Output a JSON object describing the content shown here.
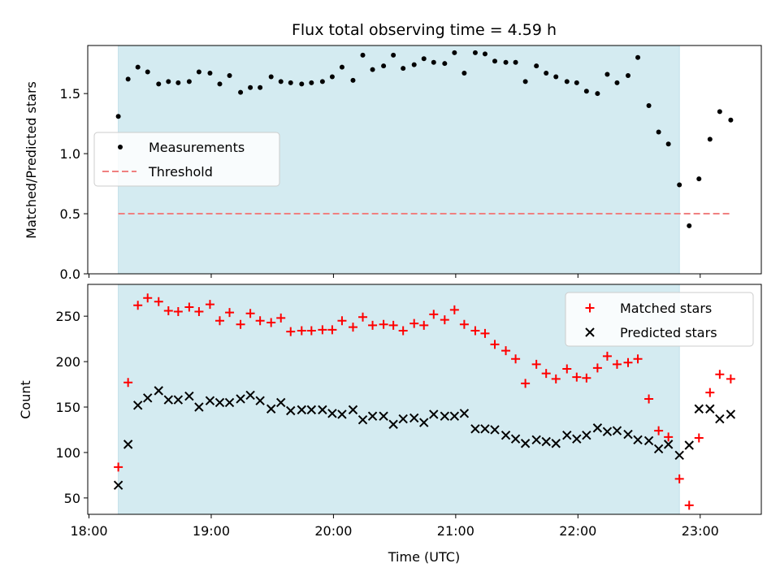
{
  "figure": {
    "title": "Flux total observing time = 4.59 h",
    "xlabel": "Time (UTC)",
    "x_tick_labels": [
      "18:00",
      "19:00",
      "20:00",
      "21:00",
      "22:00",
      "23:00"
    ],
    "shade_color": "#d4ebf1"
  },
  "chart_data": [
    {
      "type": "scatter",
      "title": "Flux total observing time = 4.59 h",
      "xlabel": "",
      "ylabel": "Matched/Predicted stars",
      "x_unit": "hours UTC",
      "xlim": [
        17.99,
        23.5
      ],
      "ylim": [
        0.0,
        1.9
      ],
      "y_ticks": [
        0.0,
        0.5,
        1.0,
        1.5
      ],
      "y_tick_labels": [
        "0.0",
        "0.5",
        "1.0",
        "1.5"
      ],
      "shaded_x_range": [
        18.24,
        22.83
      ],
      "legend": {
        "position": "center-left",
        "entries": [
          "Measurements",
          "Threshold"
        ]
      },
      "threshold": {
        "name": "Threshold",
        "y": 0.5,
        "x": [
          18.24,
          23.25
        ],
        "color": "#f08080",
        "style": "dashed"
      },
      "series": [
        {
          "name": "Measurements",
          "marker": "dot",
          "color": "#000000",
          "x": [
            18.24,
            18.32,
            18.4,
            18.48,
            18.57,
            18.65,
            18.73,
            18.82,
            18.9,
            18.99,
            19.07,
            19.15,
            19.24,
            19.32,
            19.4,
            19.49,
            19.57,
            19.65,
            19.74,
            19.82,
            19.91,
            19.99,
            20.07,
            20.16,
            20.24,
            20.32,
            20.41,
            20.49,
            20.57,
            20.66,
            20.74,
            20.82,
            20.91,
            20.99,
            21.07,
            21.16,
            21.24,
            21.32,
            21.41,
            21.49,
            21.57,
            21.66,
            21.74,
            21.82,
            21.91,
            21.99,
            22.07,
            22.16,
            22.24,
            22.32,
            22.41,
            22.49,
            22.58,
            22.66,
            22.74,
            22.83,
            22.91,
            22.99,
            23.08,
            23.16,
            23.25
          ],
          "y": [
            1.31,
            1.62,
            1.72,
            1.68,
            1.58,
            1.6,
            1.59,
            1.6,
            1.68,
            1.67,
            1.58,
            1.65,
            1.51,
            1.55,
            1.55,
            1.64,
            1.6,
            1.59,
            1.58,
            1.59,
            1.6,
            1.64,
            1.72,
            1.61,
            1.82,
            1.7,
            1.73,
            1.82,
            1.71,
            1.74,
            1.79,
            1.76,
            1.75,
            1.84,
            1.67,
            1.84,
            1.83,
            1.77,
            1.76,
            1.76,
            1.6,
            1.73,
            1.67,
            1.64,
            1.6,
            1.59,
            1.52,
            1.5,
            1.66,
            1.59,
            1.65,
            1.8,
            1.4,
            1.18,
            1.08,
            0.74,
            0.4,
            0.79,
            1.12,
            1.35,
            1.28
          ]
        }
      ]
    },
    {
      "type": "scatter",
      "title": "",
      "xlabel": "Time (UTC)",
      "ylabel": "Count",
      "x_unit": "hours UTC",
      "xlim": [
        17.99,
        23.5
      ],
      "ylim": [
        32,
        285
      ],
      "y_ticks": [
        50,
        100,
        150,
        200,
        250
      ],
      "y_tick_labels": [
        "50",
        "100",
        "150",
        "200",
        "250"
      ],
      "x_tick_labels": [
        "18:00",
        "19:00",
        "20:00",
        "21:00",
        "22:00",
        "23:00"
      ],
      "shaded_x_range": [
        18.24,
        22.83
      ],
      "legend": {
        "position": "top-right",
        "entries": [
          "Matched stars",
          "Predicted stars"
        ]
      },
      "x": [
        18.24,
        18.32,
        18.4,
        18.48,
        18.57,
        18.65,
        18.73,
        18.82,
        18.9,
        18.99,
        19.07,
        19.15,
        19.24,
        19.32,
        19.4,
        19.49,
        19.57,
        19.65,
        19.74,
        19.82,
        19.91,
        19.99,
        20.07,
        20.16,
        20.24,
        20.32,
        20.41,
        20.49,
        20.57,
        20.66,
        20.74,
        20.82,
        20.91,
        20.99,
        21.07,
        21.16,
        21.24,
        21.32,
        21.41,
        21.49,
        21.57,
        21.66,
        21.74,
        21.82,
        21.91,
        21.99,
        22.07,
        22.16,
        22.24,
        22.32,
        22.41,
        22.49,
        22.58,
        22.66,
        22.74,
        22.83,
        22.91,
        22.99,
        23.08,
        23.16,
        23.25
      ],
      "series": [
        {
          "name": "Matched stars",
          "marker": "plus",
          "color": "#ff0000",
          "values": [
            84,
            177,
            262,
            270,
            266,
            256,
            255,
            260,
            255,
            263,
            245,
            254,
            241,
            253,
            245,
            243,
            248,
            233,
            234,
            234,
            235,
            235,
            245,
            238,
            249,
            240,
            241,
            240,
            234,
            242,
            240,
            252,
            246,
            257,
            241,
            234,
            231,
            219,
            212,
            203,
            176,
            197,
            187,
            181,
            192,
            183,
            182,
            193,
            206,
            197,
            199,
            203,
            159,
            124,
            117,
            71,
            42,
            116,
            166,
            186,
            181
          ]
        },
        {
          "name": "Predicted stars",
          "marker": "x",
          "color": "#000000",
          "values": [
            64,
            109,
            152,
            160,
            168,
            158,
            158,
            162,
            150,
            157,
            155,
            155,
            159,
            163,
            157,
            148,
            155,
            146,
            147,
            147,
            147,
            143,
            142,
            147,
            136,
            140,
            140,
            131,
            137,
            138,
            133,
            142,
            140,
            140,
            143,
            126,
            126,
            125,
            119,
            115,
            110,
            114,
            112,
            110,
            119,
            115,
            119,
            127,
            123,
            124,
            120,
            114,
            113,
            104,
            109,
            97,
            108,
            148,
            148,
            137,
            142
          ]
        }
      ]
    }
  ]
}
